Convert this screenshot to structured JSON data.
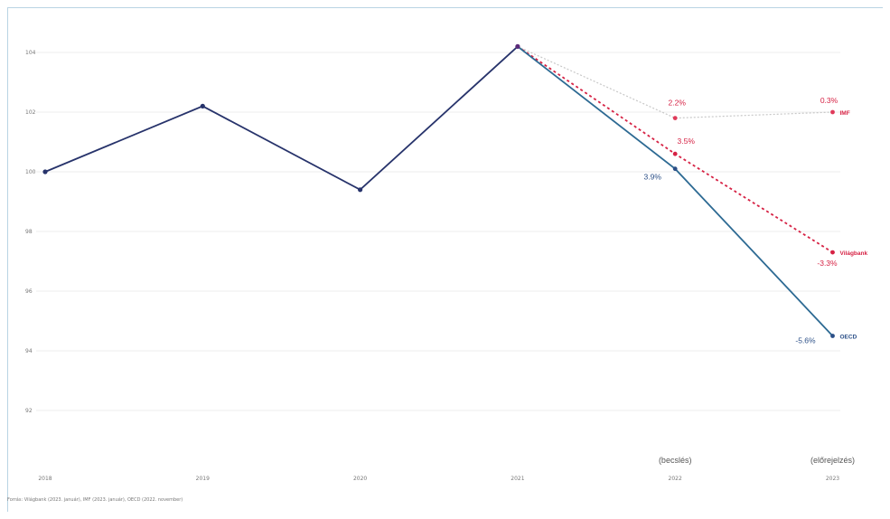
{
  "chart_data": {
    "type": "line",
    "title": "",
    "xlabel": "",
    "ylabel": "",
    "categories": [
      "2018",
      "2019",
      "2020",
      "2021",
      "2022",
      "2023"
    ],
    "category_notes": {
      "2022": "(becslés)",
      "2023": "(előrejelzés)"
    },
    "y_ticks": [
      "92",
      "94",
      "96",
      "98",
      "100",
      "102",
      "104"
    ],
    "ylim": [
      91,
      105
    ],
    "grid": true,
    "base_line": {
      "color": "#27336b",
      "values": [
        100,
        102.2,
        99.4,
        104.2
      ]
    },
    "forecasts": [
      {
        "name": "OECD",
        "color": "#2d6a93",
        "style": "solid",
        "values_2022_2023": [
          100.1,
          94.5
        ],
        "labels": [
          "3.9%",
          "-5.6%"
        ]
      },
      {
        "name": "Világbank",
        "color": "#d62244",
        "style": "dotted",
        "values_2022_2023": [
          100.6,
          97.3
        ],
        "labels": [
          "3.5%",
          "-3.3%"
        ]
      },
      {
        "name": "IMF",
        "color": "#c8c8c8",
        "style": "dotted",
        "values_2022_2023": [
          101.8,
          102.0
        ],
        "labels": [
          "2.2%",
          "0.3%"
        ]
      }
    ],
    "source": "Forrás: Világbank (2023. január), IMF (2023. január), OECD (2022. november)"
  }
}
